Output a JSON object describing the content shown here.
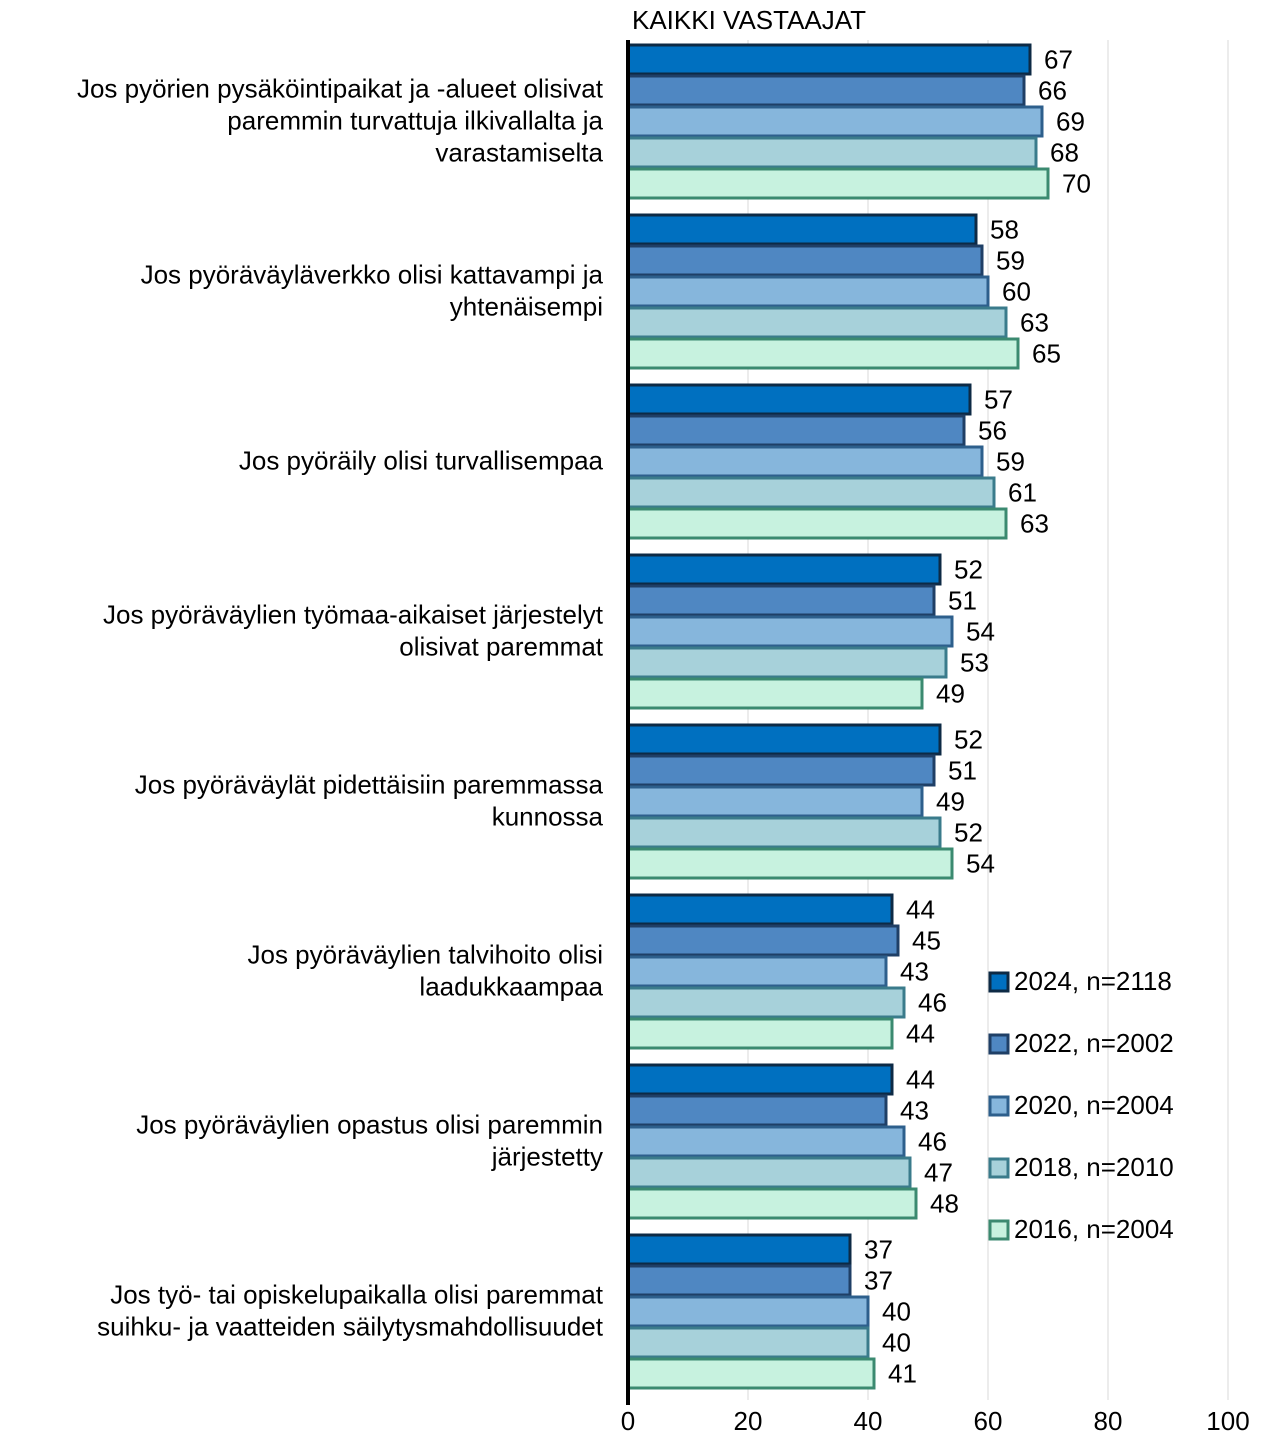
{
  "chart_data": {
    "type": "bar",
    "orientation": "horizontal",
    "title": "KAIKKI VASTAAJAT",
    "categories": [
      "Jos pyörien pysäköintipaikat ja -alueet olisivat\nparemmin turvattuja ilkivallalta ja\nvarastamiselta",
      "Jos pyöräväyläverkko olisi kattavampi ja\nyhtenäisempi",
      "Jos pyöräily olisi turvallisempaa",
      "Jos pyöräväylien työmaa-aikaiset järjestelyt\nolisivat paremmat",
      "Jos pyöräväylät pidettäisiin paremmassa\nkunnossa",
      "Jos pyöräväylien talvihoito olisi\nlaadukkaampaa",
      "Jos pyöräväylien opastus olisi paremmin\njärjestetty",
      "Jos työ- tai opiskelupaikalla olisi paremmat\nsuihku- ja vaatteiden säilytysmahdollisuudet"
    ],
    "series": [
      {
        "name": "2024, n=2118",
        "color": "#0070c0",
        "edge": "#0d2a45",
        "values": [
          67,
          58,
          57,
          52,
          52,
          44,
          44,
          37
        ]
      },
      {
        "name": "2022, n=2002",
        "color": "#4f87c2",
        "edge": "#1f3f66",
        "values": [
          66,
          59,
          56,
          51,
          51,
          45,
          43,
          37
        ]
      },
      {
        "name": "2020, n=2004",
        "color": "#86b6dc",
        "edge": "#2d5f8c",
        "values": [
          69,
          60,
          59,
          54,
          49,
          43,
          46,
          40
        ]
      },
      {
        "name": "2018, n=2010",
        "color": "#a7d1da",
        "edge": "#3a7b8b",
        "values": [
          68,
          63,
          61,
          53,
          52,
          46,
          47,
          40
        ]
      },
      {
        "name": "2016, n=2004",
        "color": "#c7f2df",
        "edge": "#3b8a70",
        "values": [
          70,
          65,
          63,
          49,
          54,
          44,
          48,
          41
        ]
      }
    ],
    "xlim": [
      0,
      100
    ],
    "xticks": [
      0,
      20,
      40,
      60,
      80,
      100
    ],
    "grid": true,
    "legend": "lower right"
  }
}
